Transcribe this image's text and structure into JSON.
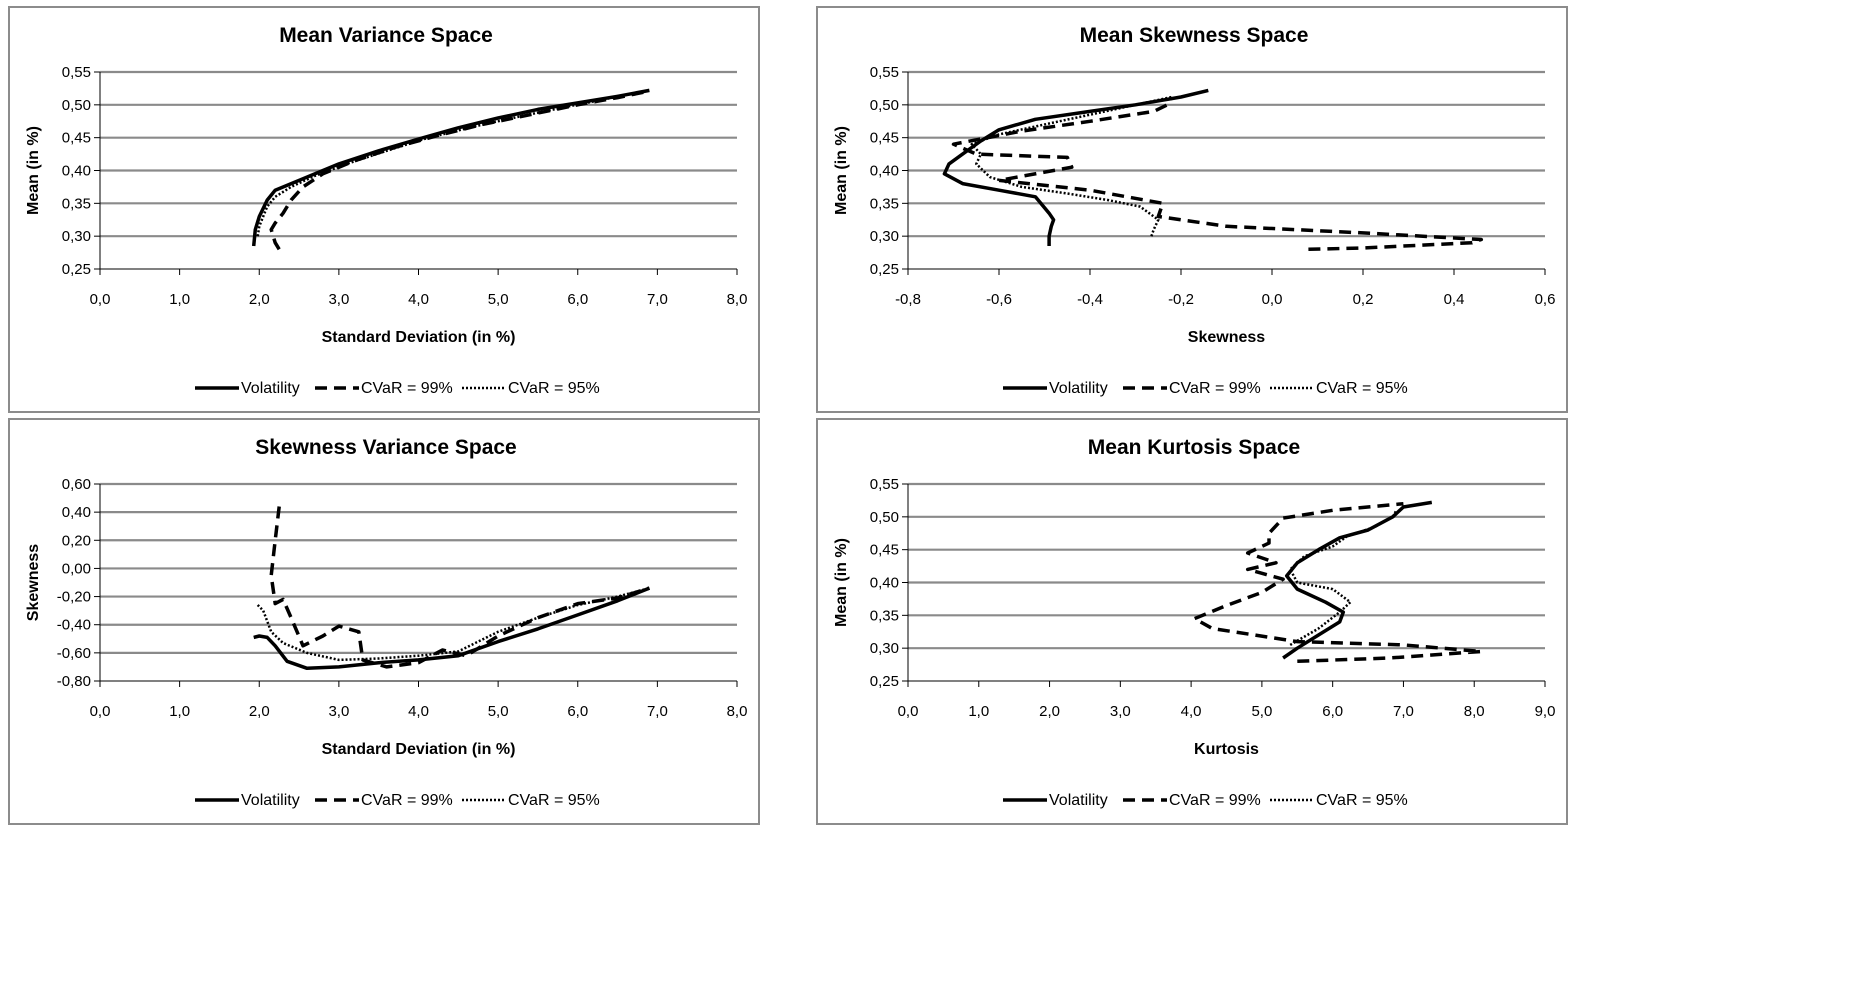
{
  "legend_labels": [
    "Volatility",
    "CVaR = 99%",
    "CVaR = 95%"
  ],
  "chart_data": [
    {
      "type": "line",
      "title": "Mean Variance Space",
      "xlabel": "Standard Deviation  (in %)",
      "ylabel": "Mean (in %)",
      "xlim": [
        0,
        8
      ],
      "ylim": [
        0.25,
        0.55
      ],
      "xticks": [
        "0,0",
        "1,0",
        "2,0",
        "3,0",
        "4,0",
        "5,0",
        "6,0",
        "7,0",
        "8,0"
      ],
      "yticks": [
        "0,25",
        "0,30",
        "0,35",
        "0,40",
        "0,45",
        "0,50",
        "0,55"
      ],
      "grid": "horizontal",
      "legend_position": "bottom",
      "series": [
        {
          "name": "Volatility",
          "style": "solid",
          "points": [
            [
              1.93,
              0.285
            ],
            [
              1.95,
              0.31
            ],
            [
              2.0,
              0.33
            ],
            [
              2.1,
              0.355
            ],
            [
              2.2,
              0.37
            ],
            [
              2.5,
              0.385
            ],
            [
              3.0,
              0.41
            ],
            [
              3.5,
              0.43
            ],
            [
              4.0,
              0.448
            ],
            [
              4.5,
              0.465
            ],
            [
              5.0,
              0.48
            ],
            [
              5.5,
              0.493
            ],
            [
              6.0,
              0.503
            ],
            [
              6.5,
              0.513
            ],
            [
              6.9,
              0.522
            ]
          ]
        },
        {
          "name": "CVaR = 99%",
          "style": "dashed",
          "points": [
            [
              2.25,
              0.28
            ],
            [
              2.2,
              0.29
            ],
            [
              2.15,
              0.31
            ],
            [
              2.2,
              0.32
            ],
            [
              2.3,
              0.335
            ],
            [
              2.4,
              0.355
            ],
            [
              2.55,
              0.375
            ],
            [
              2.8,
              0.395
            ],
            [
              3.2,
              0.415
            ],
            [
              3.7,
              0.435
            ],
            [
              4.2,
              0.452
            ],
            [
              4.8,
              0.47
            ],
            [
              5.4,
              0.485
            ],
            [
              6.0,
              0.5
            ],
            [
              6.5,
              0.511
            ],
            [
              6.9,
              0.521
            ]
          ]
        },
        {
          "name": "CVaR = 95%",
          "style": "dotted",
          "points": [
            [
              1.98,
              0.3
            ],
            [
              2.0,
              0.315
            ],
            [
              2.05,
              0.33
            ],
            [
              2.1,
              0.345
            ],
            [
              2.2,
              0.36
            ],
            [
              2.4,
              0.375
            ],
            [
              2.7,
              0.392
            ],
            [
              3.1,
              0.41
            ],
            [
              3.6,
              0.43
            ],
            [
              4.1,
              0.449
            ],
            [
              4.7,
              0.467
            ],
            [
              5.3,
              0.483
            ],
            [
              5.9,
              0.498
            ],
            [
              6.4,
              0.51
            ],
            [
              6.9,
              0.522
            ]
          ]
        }
      ]
    },
    {
      "type": "line",
      "title": "Mean Skewness Space",
      "xlabel": "Skewness",
      "ylabel": "Mean (in %)",
      "xlim": [
        -0.8,
        0.6
      ],
      "ylim": [
        0.25,
        0.55
      ],
      "xticks": [
        "-0,8",
        "-0,6",
        "-0,4",
        "-0,2",
        "0,0",
        "0,2",
        "0,4",
        "0,6"
      ],
      "yticks": [
        "0,25",
        "0,30",
        "0,35",
        "0,40",
        "0,45",
        "0,50",
        "0,55"
      ],
      "grid": "horizontal",
      "legend_position": "bottom",
      "series": [
        {
          "name": "Volatility",
          "style": "solid",
          "points": [
            [
              -0.49,
              0.285
            ],
            [
              -0.49,
              0.3
            ],
            [
              -0.485,
              0.315
            ],
            [
              -0.48,
              0.325
            ],
            [
              -0.49,
              0.335
            ],
            [
              -0.52,
              0.36
            ],
            [
              -0.6,
              0.37
            ],
            [
              -0.68,
              0.38
            ],
            [
              -0.72,
              0.395
            ],
            [
              -0.71,
              0.41
            ],
            [
              -0.68,
              0.425
            ],
            [
              -0.64,
              0.445
            ],
            [
              -0.6,
              0.462
            ],
            [
              -0.52,
              0.478
            ],
            [
              -0.4,
              0.49
            ],
            [
              -0.3,
              0.5
            ],
            [
              -0.2,
              0.512
            ],
            [
              -0.14,
              0.522
            ]
          ]
        },
        {
          "name": "CVaR = 99%",
          "style": "dashed",
          "points": [
            [
              0.08,
              0.28
            ],
            [
              0.2,
              0.282
            ],
            [
              0.44,
              0.29
            ],
            [
              0.46,
              0.295
            ],
            [
              0.2,
              0.305
            ],
            [
              -0.1,
              0.315
            ],
            [
              -0.25,
              0.33
            ],
            [
              -0.24,
              0.35
            ],
            [
              -0.4,
              0.37
            ],
            [
              -0.6,
              0.385
            ],
            [
              -0.44,
              0.405
            ],
            [
              -0.45,
              0.42
            ],
            [
              -0.65,
              0.425
            ],
            [
              -0.7,
              0.44
            ],
            [
              -0.55,
              0.46
            ],
            [
              -0.4,
              0.475
            ],
            [
              -0.26,
              0.49
            ],
            [
              -0.23,
              0.5
            ],
            [
              -0.22,
              0.512
            ]
          ]
        },
        {
          "name": "CVaR = 95%",
          "style": "dotted",
          "points": [
            [
              -0.265,
              0.3
            ],
            [
              -0.26,
              0.31
            ],
            [
              -0.25,
              0.325
            ],
            [
              -0.29,
              0.345
            ],
            [
              -0.36,
              0.355
            ],
            [
              -0.45,
              0.365
            ],
            [
              -0.55,
              0.375
            ],
            [
              -0.62,
              0.39
            ],
            [
              -0.65,
              0.41
            ],
            [
              -0.64,
              0.425
            ],
            [
              -0.66,
              0.44
            ],
            [
              -0.6,
              0.455
            ],
            [
              -0.5,
              0.47
            ],
            [
              -0.4,
              0.485
            ],
            [
              -0.3,
              0.5
            ],
            [
              -0.22,
              0.512
            ]
          ]
        }
      ]
    },
    {
      "type": "line",
      "title": "Skewness Variance Space",
      "xlabel": "Standard Deviation  (in %)",
      "ylabel": "Skewness",
      "xlim": [
        0,
        8
      ],
      "ylim": [
        -0.8,
        0.6
      ],
      "xticks": [
        "0,0",
        "1,0",
        "2,0",
        "3,0",
        "4,0",
        "5,0",
        "6,0",
        "7,0",
        "8,0"
      ],
      "yticks": [
        "-0,80",
        "-0,60",
        "-0,40",
        "-0,20",
        "0,00",
        "0,20",
        "0,40",
        "0,60"
      ],
      "grid": "horizontal",
      "legend_position": "bottom",
      "series": [
        {
          "name": "Volatility",
          "style": "solid",
          "points": [
            [
              1.93,
              -0.49
            ],
            [
              2.0,
              -0.48
            ],
            [
              2.1,
              -0.49
            ],
            [
              2.2,
              -0.55
            ],
            [
              2.35,
              -0.66
            ],
            [
              2.6,
              -0.71
            ],
            [
              3.0,
              -0.7
            ],
            [
              3.5,
              -0.67
            ],
            [
              4.0,
              -0.65
            ],
            [
              4.5,
              -0.62
            ],
            [
              5.0,
              -0.52
            ],
            [
              5.5,
              -0.43
            ],
            [
              6.0,
              -0.33
            ],
            [
              6.5,
              -0.23
            ],
            [
              6.9,
              -0.14
            ]
          ]
        },
        {
          "name": "CVaR = 99%",
          "style": "dashed",
          "points": [
            [
              2.25,
              0.44
            ],
            [
              2.2,
              0.2
            ],
            [
              2.15,
              -0.05
            ],
            [
              2.2,
              -0.25
            ],
            [
              2.3,
              -0.22
            ],
            [
              2.4,
              -0.35
            ],
            [
              2.55,
              -0.55
            ],
            [
              2.8,
              -0.48
            ],
            [
              3.0,
              -0.41
            ],
            [
              3.25,
              -0.45
            ],
            [
              3.3,
              -0.65
            ],
            [
              3.6,
              -0.7
            ],
            [
              4.0,
              -0.67
            ],
            [
              4.3,
              -0.58
            ],
            [
              4.6,
              -0.62
            ],
            [
              5.0,
              -0.48
            ],
            [
              5.5,
              -0.35
            ],
            [
              6.0,
              -0.25
            ],
            [
              6.5,
              -0.21
            ],
            [
              6.9,
              -0.14
            ]
          ]
        },
        {
          "name": "CVaR = 95%",
          "style": "dotted",
          "points": [
            [
              1.98,
              -0.26
            ],
            [
              2.05,
              -0.3
            ],
            [
              2.15,
              -0.45
            ],
            [
              2.3,
              -0.53
            ],
            [
              2.6,
              -0.6
            ],
            [
              3.0,
              -0.65
            ],
            [
              3.5,
              -0.64
            ],
            [
              4.0,
              -0.62
            ],
            [
              4.5,
              -0.59
            ],
            [
              5.0,
              -0.45
            ],
            [
              5.5,
              -0.35
            ],
            [
              6.0,
              -0.26
            ],
            [
              6.5,
              -0.2
            ],
            [
              6.9,
              -0.14
            ]
          ]
        }
      ]
    },
    {
      "type": "line",
      "title": "Mean Kurtosis Space",
      "xlabel": "Kurtosis",
      "ylabel": "Mean (in %)",
      "xlim": [
        0,
        9
      ],
      "ylim": [
        0.25,
        0.55
      ],
      "xticks": [
        "0,0",
        "1,0",
        "2,0",
        "3,0",
        "4,0",
        "5,0",
        "6,0",
        "7,0",
        "8,0",
        "9,0"
      ],
      "yticks": [
        "0,25",
        "0,30",
        "0,35",
        "0,40",
        "0,45",
        "0,50",
        "0,55"
      ],
      "grid": "horizontal",
      "legend_position": "bottom",
      "series": [
        {
          "name": "Volatility",
          "style": "solid",
          "points": [
            [
              5.3,
              0.285
            ],
            [
              5.5,
              0.3
            ],
            [
              5.8,
              0.32
            ],
            [
              6.1,
              0.34
            ],
            [
              6.15,
              0.355
            ],
            [
              5.9,
              0.37
            ],
            [
              5.5,
              0.39
            ],
            [
              5.35,
              0.41
            ],
            [
              5.5,
              0.43
            ],
            [
              5.8,
              0.45
            ],
            [
              6.1,
              0.468
            ],
            [
              6.5,
              0.48
            ],
            [
              6.85,
              0.5
            ],
            [
              7.0,
              0.515
            ],
            [
              7.4,
              0.522
            ]
          ]
        },
        {
          "name": "CVaR = 99%",
          "style": "dashed",
          "points": [
            [
              5.5,
              0.28
            ],
            [
              6.8,
              0.285
            ],
            [
              8.1,
              0.295
            ],
            [
              7.0,
              0.305
            ],
            [
              5.5,
              0.31
            ],
            [
              4.3,
              0.33
            ],
            [
              4.05,
              0.345
            ],
            [
              4.5,
              0.365
            ],
            [
              5.0,
              0.385
            ],
            [
              5.3,
              0.405
            ],
            [
              4.8,
              0.42
            ],
            [
              5.2,
              0.43
            ],
            [
              4.8,
              0.445
            ],
            [
              5.1,
              0.46
            ],
            [
              5.1,
              0.475
            ],
            [
              5.3,
              0.498
            ],
            [
              6.0,
              0.51
            ],
            [
              6.8,
              0.518
            ],
            [
              7.0,
              0.52
            ]
          ]
        },
        {
          "name": "CVaR = 95%",
          "style": "dotted",
          "points": [
            [
              5.4,
              0.305
            ],
            [
              5.8,
              0.33
            ],
            [
              6.1,
              0.355
            ],
            [
              6.25,
              0.37
            ],
            [
              6.0,
              0.39
            ],
            [
              5.5,
              0.4
            ],
            [
              5.4,
              0.42
            ],
            [
              5.6,
              0.44
            ],
            [
              6.0,
              0.455
            ],
            [
              6.2,
              0.47
            ],
            [
              6.6,
              0.485
            ],
            [
              6.85,
              0.5
            ],
            [
              6.9,
              0.51
            ]
          ]
        }
      ]
    }
  ]
}
